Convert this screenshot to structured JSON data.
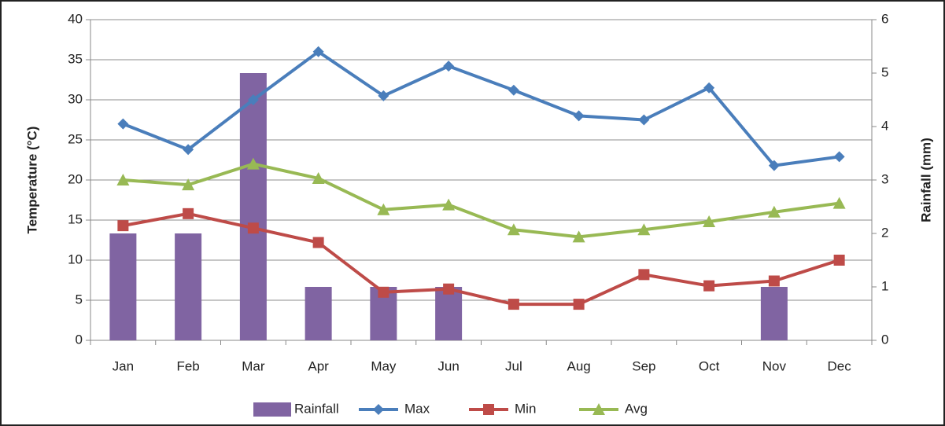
{
  "chart_data": {
    "type": "combo",
    "categories": [
      "Jan",
      "Feb",
      "Mar",
      "Apr",
      "May",
      "Jun",
      "Jul",
      "Aug",
      "Sep",
      "Oct",
      "Nov",
      "Dec"
    ],
    "ylabel": "Temperature (°C)",
    "y2label": "Rainfall (mm)",
    "ylim": [
      0,
      40
    ],
    "yticks": [
      0,
      5,
      10,
      15,
      20,
      25,
      30,
      35,
      40
    ],
    "y2lim": [
      0,
      6
    ],
    "y2ticks": [
      0,
      1,
      2,
      3,
      4,
      5,
      6
    ],
    "grid": true,
    "legend": "bottom",
    "series": [
      {
        "name": "Rainfall",
        "type": "bar",
        "axis": "y2",
        "color": "#8064a2",
        "values": [
          2,
          2,
          5,
          1,
          1,
          1,
          0,
          0,
          0,
          0,
          1,
          0
        ]
      },
      {
        "name": "Max",
        "type": "line",
        "marker": "diamond",
        "color": "#4a7ebb",
        "values": [
          27,
          23.8,
          30,
          36,
          30.5,
          34.2,
          31.2,
          28,
          27.5,
          31.5,
          21.8,
          22.9
        ]
      },
      {
        "name": "Min",
        "type": "line",
        "marker": "square",
        "color": "#be4b48",
        "values": [
          14.3,
          15.8,
          14,
          12.2,
          6,
          6.4,
          4.5,
          4.5,
          8.2,
          6.8,
          7.4,
          10
        ]
      },
      {
        "name": "Avg",
        "type": "line",
        "marker": "triangle",
        "color": "#98b954",
        "values": [
          20,
          19.4,
          22,
          20.2,
          16.3,
          16.9,
          13.8,
          12.9,
          13.8,
          14.8,
          16,
          17.1
        ]
      }
    ]
  }
}
